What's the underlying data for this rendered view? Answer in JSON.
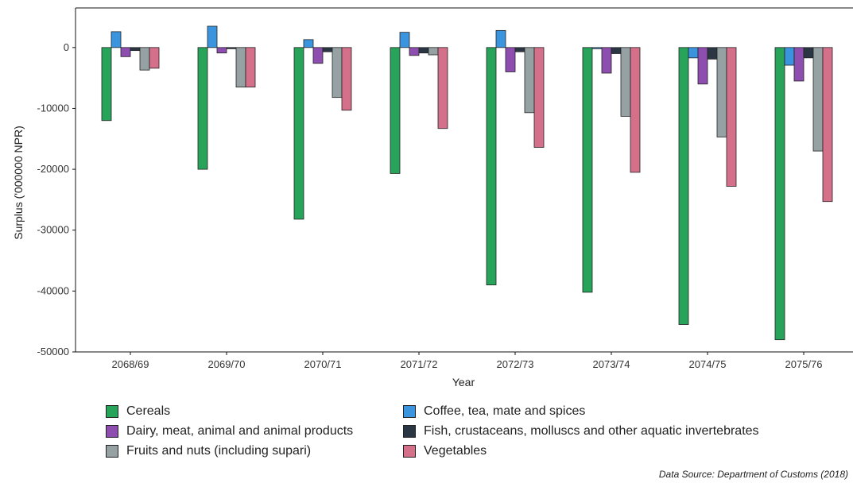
{
  "chart_data": {
    "type": "bar",
    "xlabel": "Year",
    "ylabel": "Surplus ('000000 NPR)",
    "ylim": [
      -50000,
      6500
    ],
    "yticks": [
      0,
      -10000,
      -20000,
      -30000,
      -40000,
      -50000
    ],
    "yticklabels": [
      "0",
      "-10000",
      "-20000",
      "-30000",
      "-40000",
      "-50000"
    ],
    "categories": [
      "2068/69",
      "2069/70",
      "2070/71",
      "2071/72",
      "2072/73",
      "2073/74",
      "2074/75",
      "2075/76"
    ],
    "legend_position": "bottom",
    "grid": false,
    "series": [
      {
        "name": "Cereals",
        "color": "#27a35a",
        "values": [
          -12000,
          -20000,
          -28200,
          -20700,
          -39000,
          -40200,
          -45500,
          -48000
        ]
      },
      {
        "name": "Coffee, tea, mate and spices",
        "color": "#3b94de",
        "values": [
          2600,
          3500,
          1300,
          2500,
          2800,
          -200,
          -1700,
          -2900
        ]
      },
      {
        "name": "Dairy, meat, animal and animal products",
        "color": "#8e4eb0",
        "values": [
          -1500,
          -900,
          -2600,
          -1300,
          -4000,
          -4200,
          -6000,
          -5500
        ]
      },
      {
        "name": "Fish, crustaceans, molluscs and other aquatic invertebrates",
        "color": "#2b3645",
        "values": [
          -500,
          -200,
          -700,
          -900,
          -700,
          -1000,
          -1900,
          -1700
        ]
      },
      {
        "name": "Fruits and nuts (including supari)",
        "color": "#95a1a3",
        "values": [
          -3700,
          -6500,
          -8200,
          -1200,
          -10700,
          -11300,
          -14700,
          -17000
        ]
      },
      {
        "name": "Vegetables",
        "color": "#d4708a",
        "values": [
          -3400,
          -6500,
          -10300,
          -13300,
          -16400,
          -20500,
          -22800,
          -25300
        ]
      }
    ],
    "legend_order": [
      0,
      1,
      2,
      3,
      4,
      5
    ]
  },
  "source_note": "Data Source: Department of Customs (2018)"
}
